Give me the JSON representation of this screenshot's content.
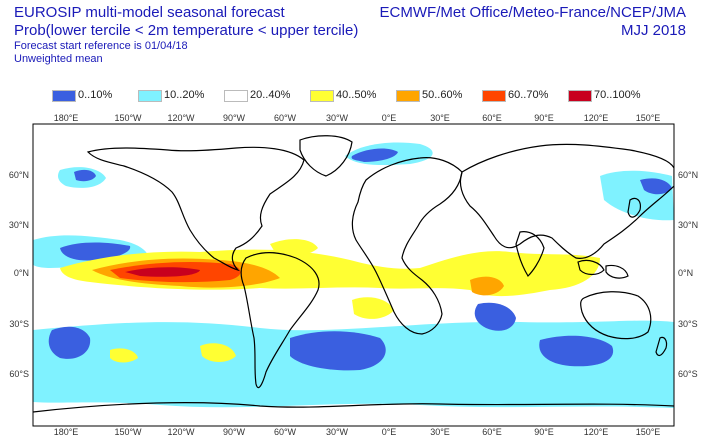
{
  "header": {
    "title_line1": "EUROSIP multi-model seasonal forecast",
    "title_line2": "Prob(lower tercile < 2m temperature < upper tercile)",
    "forecast_ref": "Forecast start reference is 01/04/18",
    "weighting": "Unweighted mean",
    "centres": "ECMWF/Met Office/Meteo-France/NCEP/JMA",
    "period": "MJJ 2018"
  },
  "legend": [
    {
      "label": "0..10%",
      "color": "#3a5fe0"
    },
    {
      "label": "10..20%",
      "color": "#7ff2ff"
    },
    {
      "label": "20..40%",
      "color": "#ffffff"
    },
    {
      "label": "40..50%",
      "color": "#ffff33"
    },
    {
      "label": "50..60%",
      "color": "#ffa500"
    },
    {
      "label": "60..70%",
      "color": "#ff4500"
    },
    {
      "label": "70..100%",
      "color": "#c8001e"
    }
  ],
  "axes": {
    "lon_labels": [
      "180°E",
      "150°W",
      "120°W",
      "90°W",
      "60°W",
      "30°W",
      "0°E",
      "30°E",
      "60°E",
      "90°E",
      "120°E",
      "150°E"
    ],
    "lat_labels": [
      "60°N",
      "30°N",
      "0°N",
      "30°S",
      "60°S"
    ]
  }
}
